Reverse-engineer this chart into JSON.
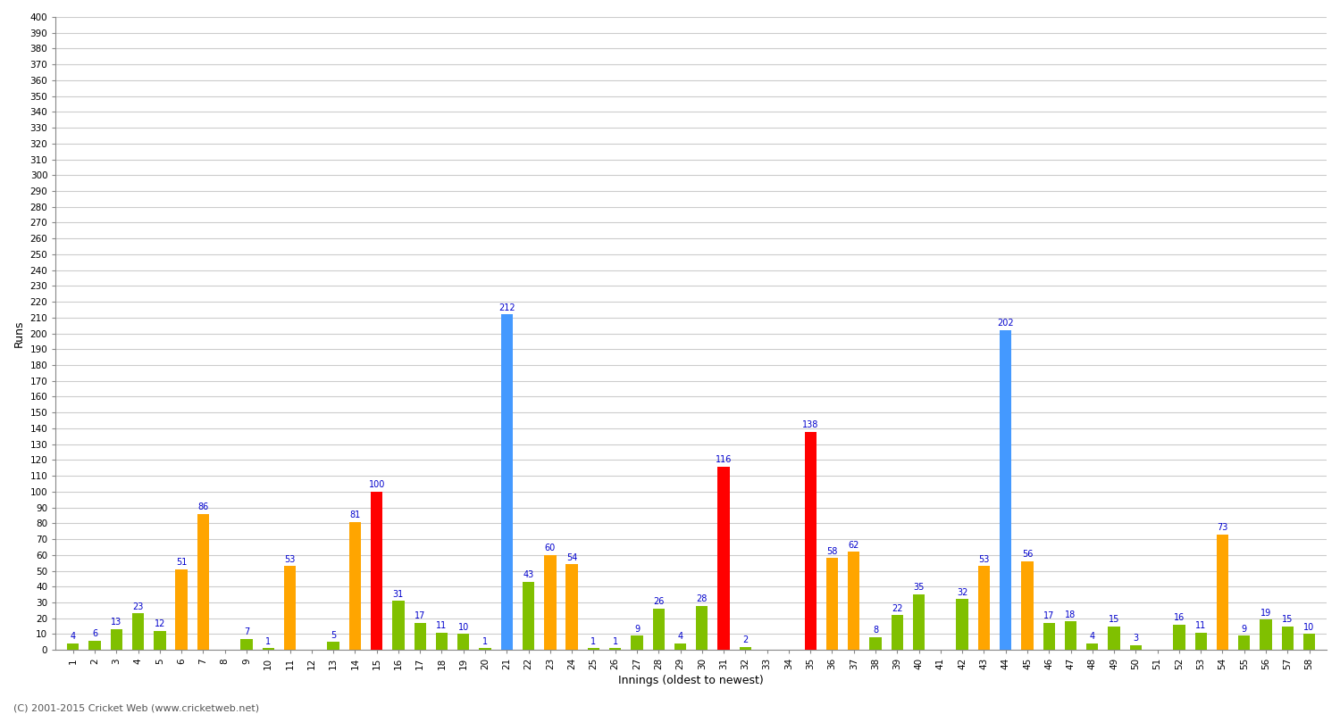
{
  "innings": [
    1,
    2,
    3,
    4,
    5,
    6,
    7,
    8,
    9,
    10,
    11,
    12,
    13,
    14,
    15,
    16,
    17,
    18,
    19,
    20,
    21,
    22,
    23,
    24,
    25,
    26,
    27,
    28,
    29,
    30,
    31,
    32,
    33,
    34,
    35,
    36,
    37,
    38,
    39,
    40,
    41,
    42,
    43,
    44,
    45,
    46,
    47,
    48,
    49,
    50,
    51,
    52,
    53,
    54,
    55,
    56,
    57,
    58
  ],
  "values": [
    4,
    6,
    13,
    23,
    12,
    51,
    86,
    0,
    7,
    1,
    53,
    0,
    5,
    81,
    100,
    31,
    17,
    11,
    10,
    1,
    212,
    43,
    60,
    54,
    1,
    1,
    9,
    26,
    4,
    28,
    116,
    2,
    0,
    0,
    138,
    58,
    62,
    8,
    22,
    35,
    0,
    32,
    53,
    202,
    56,
    17,
    18,
    4,
    15,
    3,
    0,
    16,
    11,
    73,
    9,
    19,
    15,
    10
  ],
  "colors": [
    "#80c000",
    "#80c000",
    "#80c000",
    "#80c000",
    "#80c000",
    "#ffa500",
    "#ffa500",
    "#80c000",
    "#80c000",
    "#80c000",
    "#ffa500",
    "#80c000",
    "#80c000",
    "#ffa500",
    "#ff0000",
    "#80c000",
    "#80c000",
    "#80c000",
    "#80c000",
    "#80c000",
    "#4499ff",
    "#80c000",
    "#ffa500",
    "#ffa500",
    "#80c000",
    "#80c000",
    "#80c000",
    "#80c000",
    "#80c000",
    "#80c000",
    "#ff0000",
    "#80c000",
    "#80c000",
    "#80c000",
    "#ff0000",
    "#ffa500",
    "#ffa500",
    "#80c000",
    "#80c000",
    "#80c000",
    "#80c000",
    "#80c000",
    "#ffa500",
    "#4499ff",
    "#ffa500",
    "#80c000",
    "#80c000",
    "#80c000",
    "#80c000",
    "#80c000",
    "#80c000",
    "#80c000",
    "#80c000",
    "#ffa500",
    "#80c000",
    "#80c000",
    "#80c000",
    "#80c000"
  ],
  "ylabel": "Runs",
  "xlabel": "Innings (oldest to newest)",
  "ylim": [
    0,
    400
  ],
  "yticks": [
    0,
    10,
    20,
    30,
    40,
    50,
    60,
    70,
    80,
    90,
    100,
    110,
    120,
    130,
    140,
    150,
    160,
    170,
    180,
    190,
    200,
    210,
    220,
    230,
    240,
    250,
    260,
    270,
    280,
    290,
    300,
    310,
    320,
    330,
    340,
    350,
    360,
    370,
    380,
    390,
    400
  ],
  "bg_color": "#ffffff",
  "grid_color": "#cccccc",
  "label_color": "#0000cc",
  "label_fontsize": 7,
  "axis_fontsize": 9,
  "tick_fontsize": 7.5,
  "footer": "(C) 2001-2015 Cricket Web (www.cricketweb.net)",
  "bar_width": 0.55
}
